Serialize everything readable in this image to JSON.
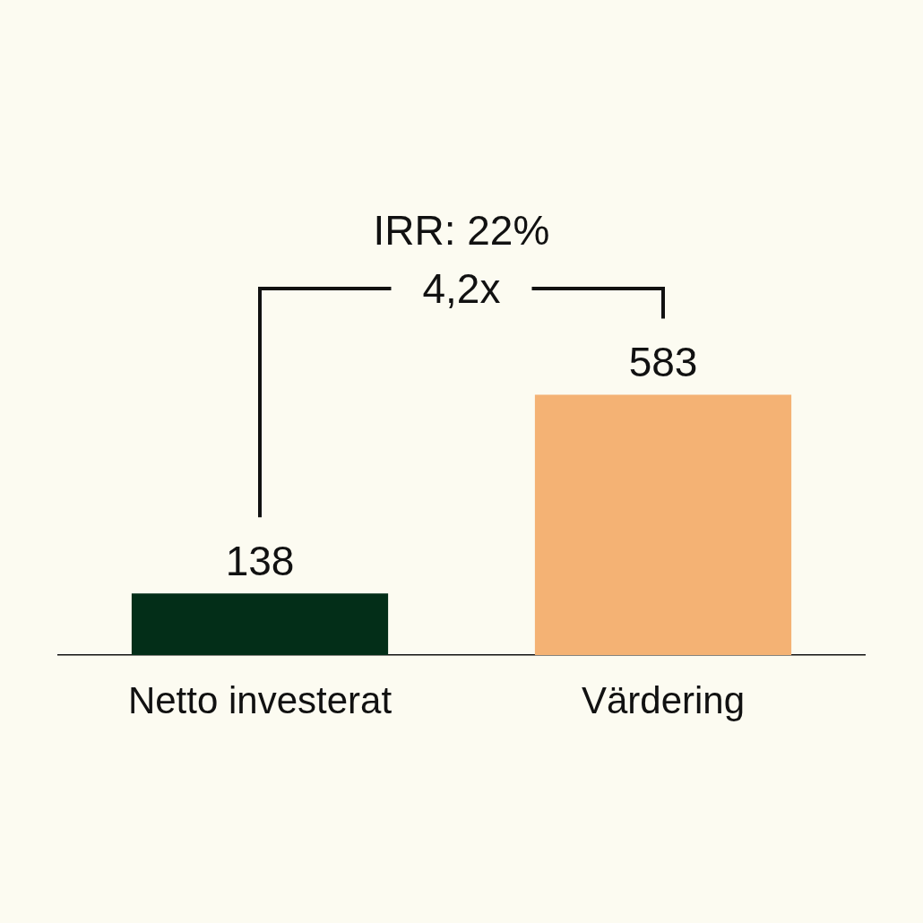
{
  "chart_data": {
    "type": "bar",
    "categories": [
      "Netto investerat",
      "Värdering"
    ],
    "values": [
      138,
      583
    ],
    "colors": [
      "#032e18",
      "#f4b274"
    ],
    "data_labels": true,
    "tick_labels": "x",
    "annotations": [
      "IRR: 22%",
      "4,2x"
    ]
  }
}
